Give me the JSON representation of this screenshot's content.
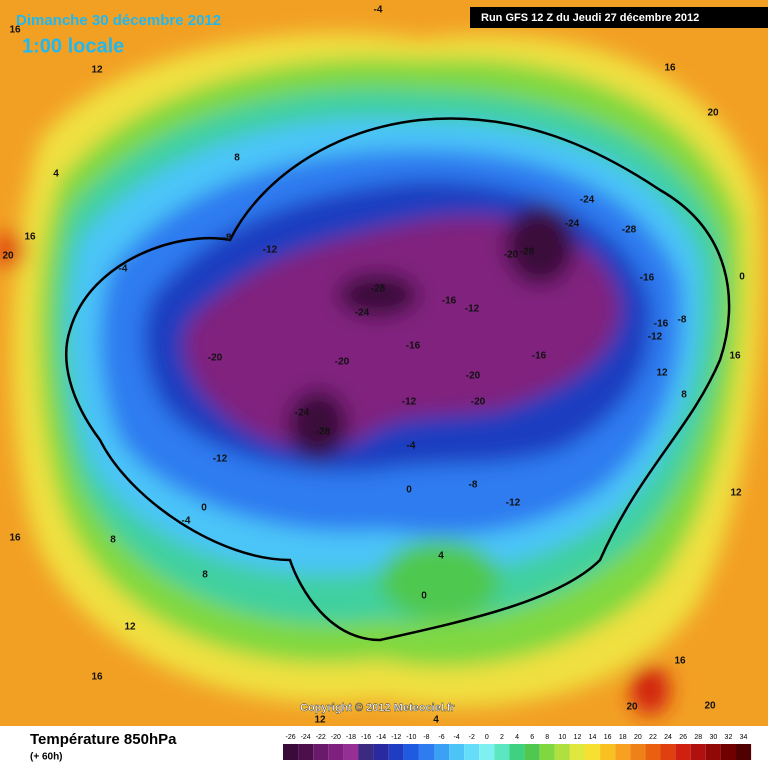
{
  "header": {
    "date": "Dimanche 30 décembre 2012",
    "time": "1:00 locale",
    "run": "Run GFS 12 Z du Jeudi 27 décembre 2012"
  },
  "copyright": "Copyright © 2012 Meteociel.fr",
  "footer": {
    "title": "Température 850hPa",
    "subtitle": "(+ 60h)"
  },
  "colorbar": {
    "values": [
      -26,
      -24,
      -22,
      -20,
      -18,
      -16,
      -14,
      -12,
      -10,
      -8,
      -6,
      -4,
      -2,
      0,
      2,
      4,
      6,
      8,
      10,
      12,
      14,
      16,
      18,
      20,
      22,
      24,
      26,
      28,
      30,
      32,
      34
    ],
    "colors": [
      "#3a0a3a",
      "#4c0f4c",
      "#6a1a6a",
      "#80207e",
      "#952f95",
      "#3a2a80",
      "#2a2aa0",
      "#1f3dc0",
      "#1f5ae0",
      "#2f7cf0",
      "#3ca0f5",
      "#4cc4f8",
      "#66ddf8",
      "#7ff0f0",
      "#5be8c0",
      "#3fd080",
      "#50c850",
      "#80d840",
      "#b0e040",
      "#e0e840",
      "#f8e030",
      "#f8c020",
      "#f8a020",
      "#f08018",
      "#e86010",
      "#e04010",
      "#d02010",
      "#b01010",
      "#900808",
      "#700000",
      "#500000"
    ]
  },
  "map_labels": [
    -28,
    -24,
    -20,
    -24,
    -28,
    -12,
    -28,
    -24,
    -24,
    -20,
    -16,
    -12,
    -16,
    -20,
    -12,
    -20,
    -20,
    -16,
    -12,
    -8,
    -4,
    0,
    4,
    0,
    16,
    12,
    8,
    4,
    16,
    20,
    -4,
    -8,
    -12,
    -4,
    0,
    8,
    16,
    12,
    16,
    8,
    12,
    4,
    20,
    20,
    16,
    12,
    16,
    20,
    12,
    -12,
    -16,
    -16,
    -28,
    -4,
    16,
    0,
    -8,
    8
  ]
}
